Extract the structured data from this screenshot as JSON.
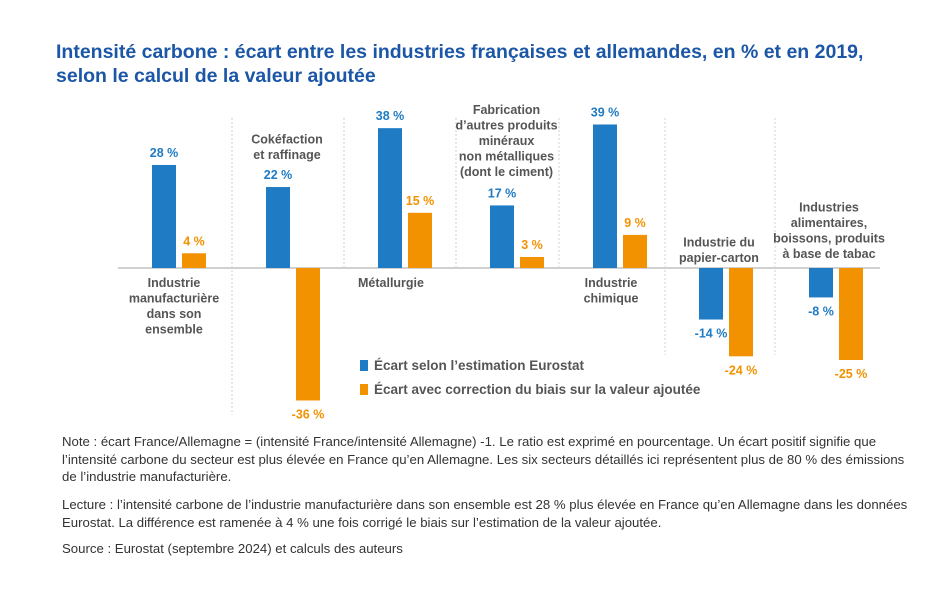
{
  "title": "Intensité carbone : écart entre les industries françaises et allemandes, en % et en 2019, selon le calcul de la valeur ajoutée",
  "chart_data": {
    "type": "bar",
    "unit": "%",
    "categories": [
      "Industrie manufacturière dans son ensemble",
      "Cokéfaction et raffinage",
      "Métallurgie",
      "Fabrication d’autres produits minéraux non métalliques (dont le ciment)",
      "Industrie chimique",
      "Industrie du papier-carton",
      "Industries alimentaires, boissons, produits à base de tabac"
    ],
    "category_label_lines": [
      [
        "Industrie",
        "manufacturière",
        "dans son",
        "ensemble"
      ],
      [
        "Cokéfaction",
        "et raffinage"
      ],
      [
        "Métallurgie"
      ],
      [
        "Fabrication",
        "d’autres produits",
        "minéraux",
        "non métalliques",
        "(dont le ciment)"
      ],
      [
        "Industrie",
        "chimique"
      ],
      [
        "Industrie du",
        "papier-carton"
      ],
      [
        "Industries",
        "alimentaires,",
        "boissons, produits",
        "à base de tabac"
      ]
    ],
    "series": [
      {
        "name": "Écart selon l’estimation Eurostat",
        "color": "#1f7bc4",
        "values": [
          28,
          22,
          38,
          17,
          39,
          -14,
          -8
        ],
        "value_labels": [
          "28 %",
          "22 %",
          "38 %",
          "17 %",
          "39 %",
          "-14 %",
          "-8 %"
        ]
      },
      {
        "name": "Écart avec correction du biais sur la valeur ajoutée",
        "color": "#f39200",
        "values": [
          4,
          -36,
          15,
          3,
          9,
          -24,
          -25
        ],
        "value_labels": [
          "4 %",
          "-36 %",
          "15 %",
          "3 %",
          "9 %",
          "-24 %",
          "-25 %"
        ]
      }
    ],
    "ylim": [
      -36,
      39
    ],
    "grid": false,
    "legend": "bottom-center"
  },
  "notes": {
    "note": "Note : écart France/Allemagne = (intensité France/intensité Allemagne) -1. Le ratio est exprimé en pourcentage. Un écart positif signifie que l’intensité carbone du secteur est plus élevée en France qu’en Allemagne. Les six secteurs détaillés ici représentent plus de 80 % des émissions de l’industrie manufacturière.",
    "reading": "Lecture : l’intensité carbone de l’industrie manufacturière dans son ensemble est 28 % plus élevée en France qu’en Allemagne dans les données Eurostat. La différence est ramenée à 4 % une fois corrigé le biais sur l’estimation de la valeur ajoutée.",
    "source": "Source : Eurostat (septembre 2024) et calculs des auteurs"
  }
}
